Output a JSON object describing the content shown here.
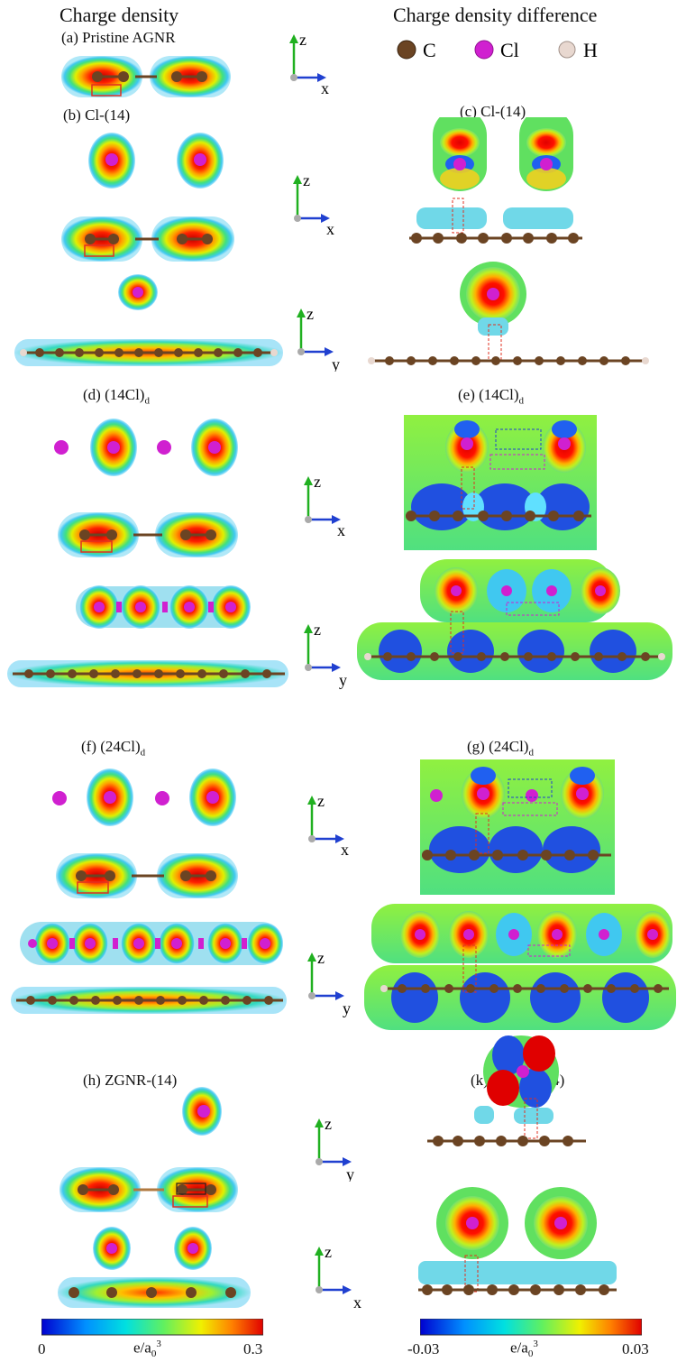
{
  "headers": {
    "left": "Charge density",
    "right": "Charge density difference"
  },
  "legend": [
    {
      "symbol": "C",
      "color": "#6b4423"
    },
    {
      "symbol": "Cl",
      "color": "#d020d0"
    },
    {
      "symbol": "H",
      "color": "#e8d8d0"
    }
  ],
  "panels": {
    "a": "(a) Pristine AGNR",
    "b": "(b) Cl-(14)",
    "c": "(c) Cl-(14)",
    "d": {
      "text": "(d) (14Cl)",
      "sub": "d"
    },
    "e": {
      "text": "(e) (14Cl)",
      "sub": "d"
    },
    "f": {
      "text": "(f) (24Cl)",
      "sub": "d"
    },
    "g": {
      "text": "(g) (24Cl)",
      "sub": "d"
    },
    "h": "(h) ZGNR-(14)",
    "k": "(k) ZGNR-(14)"
  },
  "axes": {
    "z": "z",
    "x": "x",
    "y": "y"
  },
  "colorbars": {
    "left": {
      "min": "0",
      "max": "0.3",
      "unit": "e/a",
      "unit_sub": "0",
      "unit_sup": "3"
    },
    "right": {
      "min": "-0.03",
      "max": "0.03",
      "unit": "e/a",
      "unit_sub": "0",
      "unit_sup": "3"
    }
  },
  "colors": {
    "axis_z": "#20b020",
    "axis_h": "#2040d0",
    "carbon": "#6b4423",
    "chlorine": "#d020d0",
    "hydrogen": "#e8d8d0",
    "highlight_box": "#e03020"
  }
}
